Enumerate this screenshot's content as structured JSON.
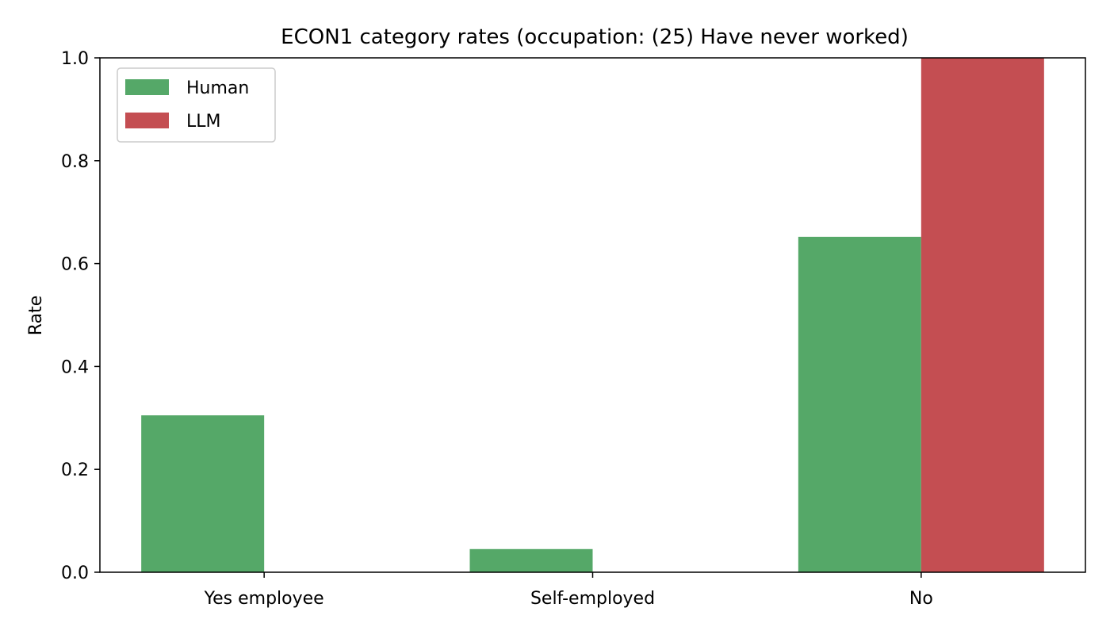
{
  "chart_data": {
    "type": "bar",
    "title": "ECON1 category rates (occupation: (25) Have never worked)",
    "xlabel": "",
    "ylabel": "Rate",
    "categories": [
      "Yes employee",
      "Self-employed",
      "No"
    ],
    "series": [
      {
        "name": "Human",
        "color": "#55a868",
        "values": [
          0.305,
          0.045,
          0.652
        ]
      },
      {
        "name": "LLM",
        "color": "#c44e52",
        "values": [
          0.0,
          0.0,
          1.0
        ]
      }
    ],
    "ylim": [
      0,
      1.0
    ],
    "yticks": [
      "0.0",
      "0.2",
      "0.4",
      "0.6",
      "0.8",
      "1.0"
    ],
    "ytick_values": [
      0,
      0.2,
      0.4,
      0.6,
      0.8,
      1.0
    ],
    "grid": false,
    "legend_position": "top-left"
  }
}
